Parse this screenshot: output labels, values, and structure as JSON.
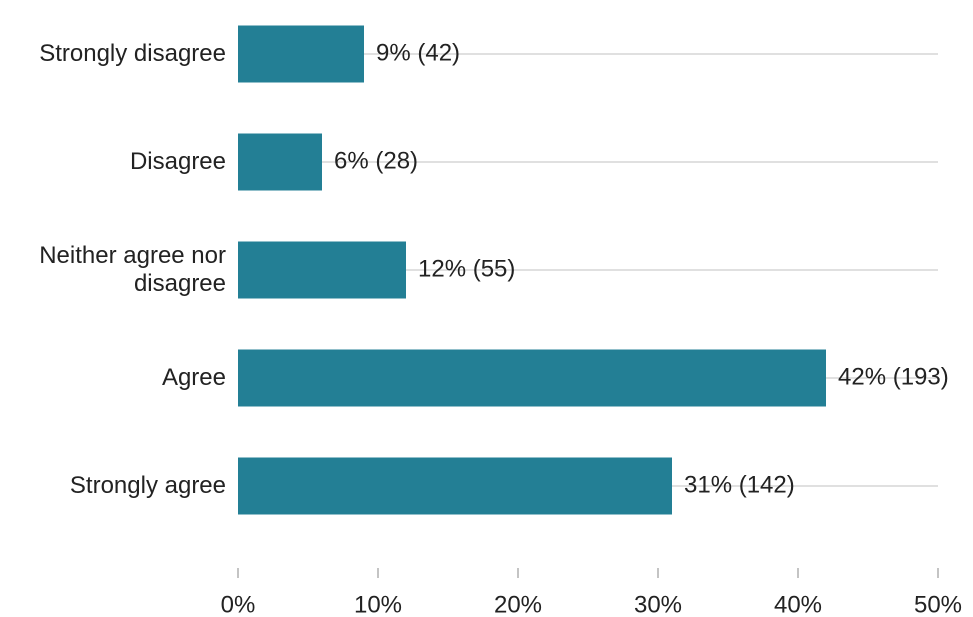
{
  "chart_data": {
    "type": "hbar",
    "categories": [
      "Strongly disagree",
      "Disagree",
      "Neither agree nor disagree",
      "Agree",
      "Strongly agree"
    ],
    "values": [
      9,
      6,
      12,
      42,
      31
    ],
    "value_labels": [
      "9% (42)",
      "6% (28)",
      "12% (55)",
      "42% (193)",
      "31% (142)"
    ],
    "color": "#237f95",
    "xlim": [
      0,
      50
    ],
    "xticks": [
      {
        "value": 0,
        "label": "0%"
      },
      {
        "value": 10,
        "label": "10%"
      },
      {
        "value": 20,
        "label": "20%"
      },
      {
        "value": 30,
        "label": "30%"
      },
      {
        "value": 40,
        "label": "40%"
      },
      {
        "value": 50,
        "label": "50%"
      }
    ],
    "grid": true
  }
}
